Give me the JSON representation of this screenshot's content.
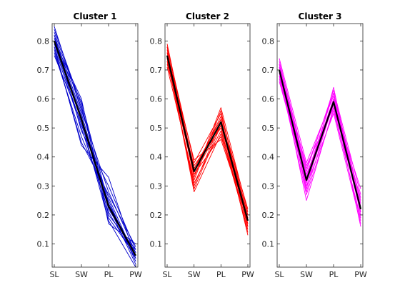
{
  "chart_data": [
    {
      "type": "line",
      "title": "Cluster 1",
      "categories": [
        "SL",
        "SW",
        "PL",
        "PW"
      ],
      "ylim": [
        0.02,
        0.86
      ],
      "yticks": [
        0.1,
        0.2,
        0.3,
        0.4,
        0.5,
        0.6,
        0.7,
        0.8
      ],
      "yticklabels": [
        "0.1",
        "0.2",
        "0.3",
        "0.4",
        "0.5",
        "0.6",
        "0.7",
        "0.8"
      ],
      "line_color": "#0000cc",
      "centroid": [
        0.8,
        0.53,
        0.23,
        0.06
      ],
      "series": [
        {
          "values": [
            0.78,
            0.5,
            0.21,
            0.05
          ]
        },
        {
          "values": [
            0.8,
            0.53,
            0.24,
            0.06
          ]
        },
        {
          "values": [
            0.82,
            0.55,
            0.22,
            0.07
          ]
        },
        {
          "values": [
            0.76,
            0.47,
            0.25,
            0.04
          ]
        },
        {
          "values": [
            0.84,
            0.58,
            0.2,
            0.08
          ]
        },
        {
          "values": [
            0.79,
            0.51,
            0.26,
            0.05
          ]
        },
        {
          "values": [
            0.81,
            0.54,
            0.19,
            0.06
          ]
        },
        {
          "values": [
            0.77,
            0.45,
            0.27,
            0.09
          ]
        },
        {
          "values": [
            0.83,
            0.57,
            0.23,
            0.03
          ]
        },
        {
          "values": [
            0.8,
            0.6,
            0.17,
            0.1
          ]
        },
        {
          "values": [
            0.78,
            0.44,
            0.33,
            0.05
          ]
        },
        {
          "values": [
            0.85,
            0.56,
            0.28,
            0.07
          ]
        },
        {
          "values": [
            0.75,
            0.52,
            0.18,
            0.02
          ]
        },
        {
          "values": [
            0.82,
            0.49,
            0.3,
            0.08
          ]
        },
        {
          "values": [
            0.79,
            0.59,
            0.24,
            0.04
          ]
        }
      ]
    },
    {
      "type": "line",
      "title": "Cluster 2",
      "categories": [
        "SL",
        "SW",
        "PL",
        "PW"
      ],
      "ylim": [
        0.02,
        0.86
      ],
      "yticks": [
        0.1,
        0.2,
        0.3,
        0.4,
        0.5,
        0.6,
        0.7,
        0.8
      ],
      "yticklabels": [
        "0.1",
        "0.2",
        "0.3",
        "0.4",
        "0.5",
        "0.6",
        "0.7",
        "0.8"
      ],
      "line_color": "#ff0000",
      "centroid": [
        0.75,
        0.35,
        0.52,
        0.18
      ],
      "series": [
        {
          "values": [
            0.74,
            0.34,
            0.51,
            0.17
          ]
        },
        {
          "values": [
            0.76,
            0.36,
            0.53,
            0.19
          ]
        },
        {
          "values": [
            0.73,
            0.31,
            0.49,
            0.16
          ]
        },
        {
          "values": [
            0.78,
            0.38,
            0.55,
            0.2
          ]
        },
        {
          "values": [
            0.75,
            0.28,
            0.48,
            0.15
          ]
        },
        {
          "values": [
            0.77,
            0.33,
            0.57,
            0.21
          ]
        },
        {
          "values": [
            0.72,
            0.37,
            0.5,
            0.14
          ]
        },
        {
          "values": [
            0.79,
            0.35,
            0.54,
            0.22
          ]
        },
        {
          "values": [
            0.74,
            0.3,
            0.52,
            0.13
          ]
        },
        {
          "values": [
            0.76,
            0.39,
            0.46,
            0.18
          ]
        },
        {
          "values": [
            0.71,
            0.32,
            0.56,
            0.16
          ]
        },
        {
          "values": [
            0.78,
            0.36,
            0.53,
            0.2
          ]
        },
        {
          "values": [
            0.75,
            0.29,
            0.51,
            0.17
          ]
        },
        {
          "values": [
            0.73,
            0.34,
            0.47,
            0.19
          ]
        }
      ]
    },
    {
      "type": "line",
      "title": "Cluster 3",
      "categories": [
        "SL",
        "SW",
        "PL",
        "PW"
      ],
      "ylim": [
        0.02,
        0.86
      ],
      "yticks": [
        0.1,
        0.2,
        0.3,
        0.4,
        0.5,
        0.6,
        0.7,
        0.8
      ],
      "yticklabels": [
        "0.1",
        "0.2",
        "0.3",
        "0.4",
        "0.5",
        "0.6",
        "0.7",
        "0.8"
      ],
      "line_color": "#ff00ff",
      "centroid": [
        0.7,
        0.32,
        0.59,
        0.22
      ],
      "series": [
        {
          "values": [
            0.69,
            0.31,
            0.58,
            0.21
          ]
        },
        {
          "values": [
            0.71,
            0.33,
            0.6,
            0.23
          ]
        },
        {
          "values": [
            0.68,
            0.27,
            0.56,
            0.19
          ]
        },
        {
          "values": [
            0.73,
            0.36,
            0.62,
            0.25
          ]
        },
        {
          "values": [
            0.7,
            0.25,
            0.57,
            0.18
          ]
        },
        {
          "values": [
            0.72,
            0.35,
            0.63,
            0.27
          ]
        },
        {
          "values": [
            0.67,
            0.3,
            0.55,
            0.17
          ]
        },
        {
          "values": [
            0.74,
            0.38,
            0.61,
            0.24
          ]
        },
        {
          "values": [
            0.69,
            0.29,
            0.64,
            0.2
          ]
        },
        {
          "values": [
            0.71,
            0.34,
            0.58,
            0.29
          ]
        },
        {
          "values": [
            0.66,
            0.32,
            0.6,
            0.16
          ]
        },
        {
          "values": [
            0.72,
            0.28,
            0.59,
            0.22
          ]
        },
        {
          "values": [
            0.7,
            0.37,
            0.57,
            0.26
          ]
        },
        {
          "values": [
            0.68,
            0.33,
            0.62,
            0.21
          ]
        }
      ]
    }
  ]
}
